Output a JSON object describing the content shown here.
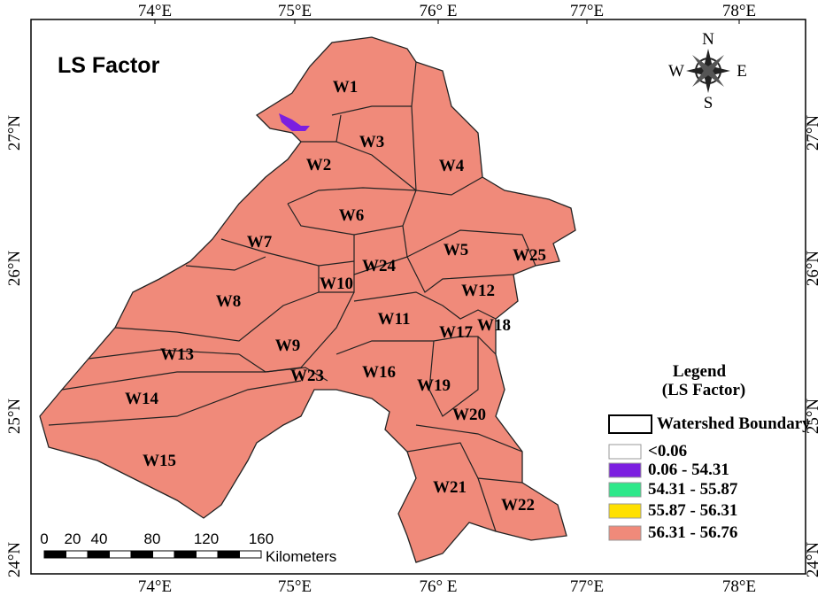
{
  "title": "LS Factor",
  "lon_labels": [
    "74°E",
    "75°E",
    "76° E",
    "77°E",
    "78°E"
  ],
  "lat_labels": [
    "27°N",
    "26°N",
    "25°N",
    "24°N"
  ],
  "watersheds": [
    "W1",
    "W2",
    "W3",
    "W4",
    "W5",
    "W6",
    "W7",
    "W8",
    "W9",
    "W10",
    "W11",
    "W12",
    "W13",
    "W14",
    "W15",
    "W16",
    "W17",
    "W18",
    "W19",
    "W20",
    "W21",
    "W22",
    "W23",
    "W24",
    "W25"
  ],
  "compass": [
    "N",
    "E",
    "S",
    "W"
  ],
  "legend": {
    "title": "Legend",
    "subtitle": "(LS Factor)",
    "items": [
      {
        "label": "Watershed Boundary",
        "color": "#ffffff"
      },
      {
        "label": "<0.06",
        "color": "#ffffff"
      },
      {
        "label": "0.06 - 54.31",
        "color": "#7b1fe0"
      },
      {
        "label": "54.31 - 55.87",
        "color": "#2ee88a"
      },
      {
        "label": "55.87 - 56.31",
        "color": "#ffe000"
      },
      {
        "label": "56.31 - 56.76",
        "color": "#f08a7a"
      }
    ]
  },
  "scale_bar": {
    "ticks": [
      0,
      20,
      40,
      80,
      120,
      160
    ],
    "unit": "Kilometers"
  }
}
